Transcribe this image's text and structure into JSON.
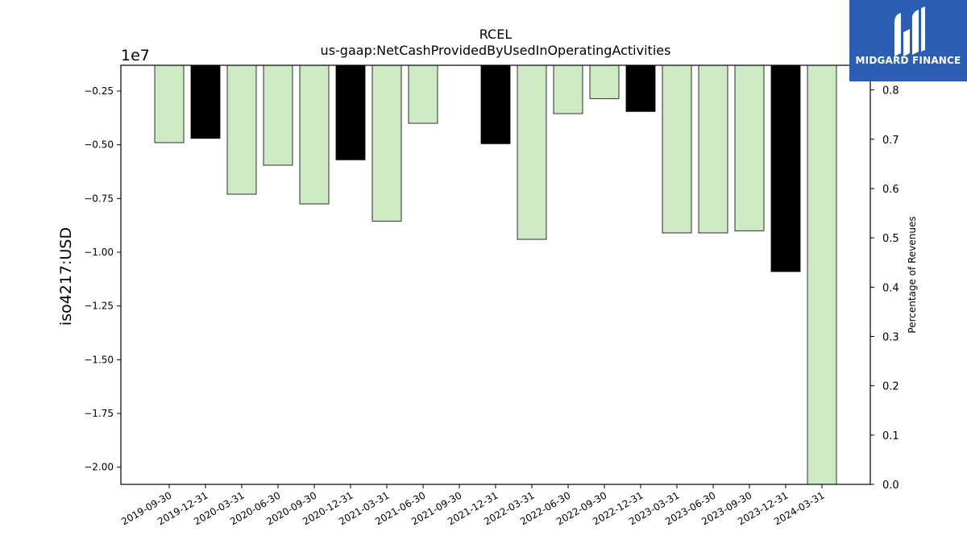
{
  "chart_data": {
    "type": "bar",
    "title": "RCEL",
    "subtitle": "us-gaap:NetCashProvidedByUsedInOperatingActivities",
    "ylabel": "iso4217:USD",
    "y2label": "Percentage of Revenues",
    "y_offset_label": "1e7",
    "y_scale": 10000000,
    "ylim": [
      -2.08,
      -0.13
    ],
    "y2lim": [
      0.0,
      0.85
    ],
    "yticks": [
      "−0.25",
      "−0.50",
      "−0.75",
      "−1.00",
      "−1.25",
      "−1.50",
      "−1.75",
      "−2.00"
    ],
    "y2ticks": [
      "0.0",
      "0.1",
      "0.2",
      "0.3",
      "0.4",
      "0.5",
      "0.6",
      "0.7",
      "0.8"
    ],
    "categories": [
      "2019-09-30",
      "2019-12-31",
      "2020-03-31",
      "2020-06-30",
      "2020-09-30",
      "2020-12-31",
      "2021-03-31",
      "2021-06-30",
      "2021-09-30",
      "2021-12-31",
      "2022-03-31",
      "2022-06-30",
      "2022-09-30",
      "2022-12-31",
      "2023-03-31",
      "2023-06-30",
      "2023-09-30",
      "2023-12-31",
      "2024-03-31"
    ],
    "values": [
      -4900000,
      -4700000,
      -7300000,
      -5950000,
      -7750000,
      -5700000,
      -8550000,
      -4000000,
      null,
      -4950000,
      -9400000,
      -3550000,
      -2850000,
      -3450000,
      -9100000,
      -9100000,
      -9000000,
      -10900000,
      -20800000
    ],
    "bar_colors": [
      "#cdeac5",
      "#000000",
      "#cdeac5",
      "#cdeac5",
      "#cdeac5",
      "#000000",
      "#cdeac5",
      "#cdeac5",
      "#cdeac5",
      "#000000",
      "#cdeac5",
      "#cdeac5",
      "#cdeac5",
      "#000000",
      "#cdeac5",
      "#cdeac5",
      "#cdeac5",
      "#000000",
      "#cdeac5"
    ],
    "grid": false
  },
  "logo": {
    "text": "MIDGARD FINANCE",
    "background": "#2c5fb3"
  }
}
